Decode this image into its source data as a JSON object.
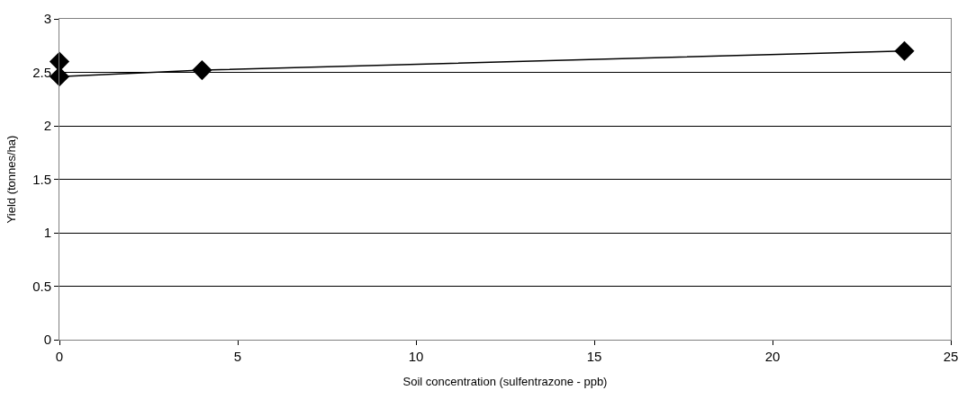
{
  "chart_data": {
    "type": "line",
    "xlabel": "Soil concentration (sulfentrazone - ppb)",
    "ylabel": "Yield (tonnes/ha)",
    "series": [
      {
        "color": "#000000",
        "x": [
          0,
          4,
          23.7
        ],
        "values": [
          2.46,
          2.52,
          2.7
        ]
      },
      {
        "type": "scatter",
        "color": "#000000",
        "x": [
          0
        ],
        "values": [
          2.6
        ]
      }
    ],
    "xlim": [
      0,
      25
    ],
    "xticks": [
      0,
      5,
      10,
      15,
      20,
      25
    ],
    "ylim": [
      0,
      3
    ],
    "yticks": [
      0,
      0.5,
      1,
      1.5,
      2,
      2.5,
      3
    ],
    "grid": "y",
    "marker": "diamond",
    "line_style": "solid"
  }
}
